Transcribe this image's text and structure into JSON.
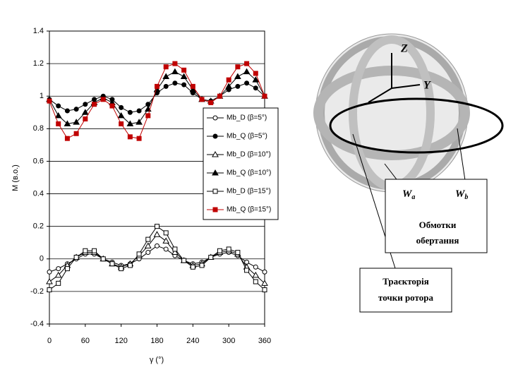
{
  "chart_data": {
    "type": "line",
    "x_label": "γ (°)",
    "y_label": "M (в.о.)",
    "x": [
      0,
      15,
      30,
      45,
      60,
      75,
      90,
      105,
      120,
      135,
      150,
      165,
      180,
      195,
      210,
      225,
      240,
      255,
      270,
      285,
      300,
      315,
      330,
      345,
      360
    ],
    "xlim": [
      0,
      360
    ],
    "xticks": [
      0,
      60,
      120,
      180,
      240,
      300,
      360
    ],
    "ylim": [
      -0.4,
      1.4
    ],
    "yticks": [
      -0.4,
      -0.2,
      0,
      0.2,
      0.4,
      0.6,
      0.8,
      1,
      1.2,
      1.4
    ],
    "grid": true,
    "series": [
      {
        "name": "Mb_D (β=5°)",
        "color": "#000000",
        "marker": "circle",
        "filled": false,
        "values": [
          -0.08,
          -0.06,
          -0.03,
          0.0,
          0.03,
          0.03,
          0.0,
          -0.02,
          -0.04,
          -0.03,
          0.0,
          0.04,
          0.08,
          0.06,
          0.02,
          -0.01,
          -0.03,
          -0.02,
          0.01,
          0.03,
          0.04,
          0.02,
          -0.02,
          -0.05,
          -0.08
        ]
      },
      {
        "name": "Mb_Q (β=5°)",
        "color": "#000000",
        "marker": "circle",
        "filled": true,
        "values": [
          0.98,
          0.94,
          0.91,
          0.92,
          0.95,
          0.98,
          1.0,
          0.98,
          0.93,
          0.9,
          0.91,
          0.95,
          1.02,
          1.06,
          1.08,
          1.07,
          1.02,
          0.98,
          0.97,
          1.0,
          1.04,
          1.06,
          1.08,
          1.05,
          1.0
        ]
      },
      {
        "name": "Mb_D (β=10°)",
        "color": "#000000",
        "marker": "triangle",
        "filled": false,
        "values": [
          -0.14,
          -0.1,
          -0.04,
          0.01,
          0.04,
          0.04,
          0.0,
          -0.03,
          -0.05,
          -0.03,
          0.02,
          0.08,
          0.15,
          0.11,
          0.04,
          -0.01,
          -0.04,
          -0.03,
          0.01,
          0.04,
          0.05,
          0.03,
          -0.05,
          -0.1,
          -0.15
        ]
      },
      {
        "name": "Mb_Q (β=10°)",
        "color": "#000000",
        "marker": "triangle",
        "filled": true,
        "values": [
          0.98,
          0.88,
          0.83,
          0.84,
          0.9,
          0.96,
          0.99,
          0.96,
          0.88,
          0.83,
          0.84,
          0.92,
          1.04,
          1.12,
          1.15,
          1.12,
          1.04,
          0.98,
          0.97,
          1.0,
          1.06,
          1.12,
          1.15,
          1.1,
          1.0
        ]
      },
      {
        "name": "Mb_D (β=15°)",
        "color": "#000000",
        "marker": "square",
        "filled": false,
        "values": [
          -0.19,
          -0.15,
          -0.06,
          0.01,
          0.05,
          0.05,
          0.0,
          -0.03,
          -0.06,
          -0.04,
          0.03,
          0.12,
          0.2,
          0.16,
          0.06,
          -0.01,
          -0.05,
          -0.04,
          0.01,
          0.05,
          0.06,
          0.04,
          -0.07,
          -0.14,
          -0.19
        ]
      },
      {
        "name": "Mb_Q (β=15°)",
        "color": "#c00000",
        "marker": "square",
        "filled": true,
        "values": [
          0.97,
          0.83,
          0.74,
          0.77,
          0.86,
          0.95,
          0.98,
          0.94,
          0.83,
          0.75,
          0.74,
          0.88,
          1.06,
          1.18,
          1.2,
          1.16,
          1.06,
          0.98,
          0.96,
          1.0,
          1.1,
          1.18,
          1.2,
          1.14,
          1.0
        ]
      }
    ]
  },
  "illustration": {
    "axis_z": "Z",
    "axis_y": "Y",
    "winding_a": {
      "main": "W",
      "sub": "a"
    },
    "winding_b": {
      "main": "W",
      "sub": "b"
    },
    "windings_caption": [
      "Обмотки",
      "обертання"
    ],
    "trajectory_caption": [
      "Траєкторія",
      "точки ротора"
    ]
  }
}
